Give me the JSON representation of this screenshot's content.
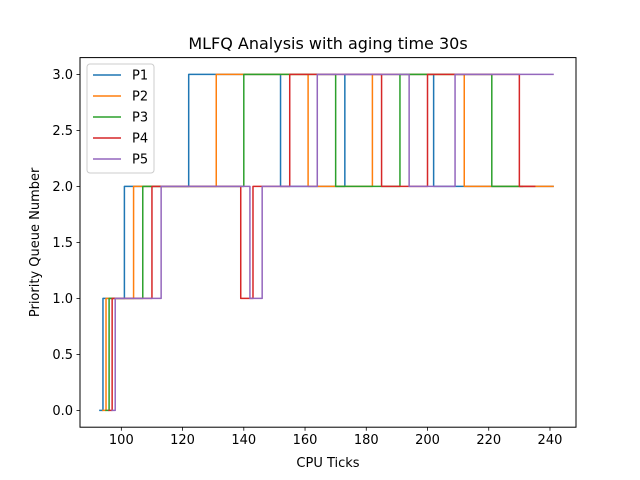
{
  "chart_data": {
    "type": "line",
    "title": "MLFQ Analysis with aging time 30s",
    "xlabel": "CPU Ticks",
    "ylabel": "Priority Queue Number",
    "xlim": [
      86.5,
      248.5
    ],
    "ylim": [
      -0.15,
      3.15
    ],
    "xticks": [
      100,
      120,
      140,
      160,
      180,
      200,
      220,
      240
    ],
    "yticks": [
      0.0,
      0.5,
      1.0,
      1.5,
      2.0,
      2.5,
      3.0
    ],
    "ytick_labels": [
      "0.0",
      "0.5",
      "1.0",
      "1.5",
      "2.0",
      "2.5",
      "3.0"
    ],
    "grid": false,
    "legend_position": "top-left",
    "series": [
      {
        "name": "P1",
        "color": "#1f77b4",
        "x": [
          93,
          94,
          94,
          101,
          101,
          122,
          122,
          152,
          152,
          173,
          173,
          202,
          202,
          241
        ],
        "y": [
          0,
          0,
          1,
          1,
          2,
          2,
          3,
          3,
          2,
          2,
          3,
          3,
          2,
          2
        ]
      },
      {
        "name": "P2",
        "color": "#ff7f0e",
        "x": [
          94,
          95,
          95,
          104,
          104,
          131,
          131,
          161,
          161,
          182,
          182,
          212,
          212,
          241
        ],
        "y": [
          0,
          0,
          1,
          1,
          2,
          2,
          3,
          3,
          2,
          2,
          3,
          3,
          2,
          2
        ]
      },
      {
        "name": "P3",
        "color": "#2ca02c",
        "x": [
          95,
          96,
          96,
          107,
          107,
          140,
          140,
          170,
          170,
          191,
          191,
          221,
          221,
          231
        ],
        "y": [
          0,
          0,
          1,
          1,
          2,
          2,
          3,
          3,
          2,
          2,
          3,
          3,
          2,
          2
        ]
      },
      {
        "name": "P4",
        "color": "#d62728",
        "x": [
          96,
          97,
          97,
          110,
          110,
          139,
          139,
          143,
          143,
          155,
          155,
          185,
          185,
          200,
          200,
          230,
          230,
          235
        ],
        "y": [
          0,
          0,
          1,
          1,
          2,
          2,
          1,
          1,
          2,
          2,
          3,
          3,
          2,
          2,
          3,
          3,
          2,
          2
        ]
      },
      {
        "name": "P5",
        "color": "#9467bd",
        "x": [
          97,
          98,
          98,
          113,
          113,
          142,
          142,
          146,
          146,
          164,
          164,
          194,
          194,
          209,
          209,
          241
        ],
        "y": [
          0,
          0,
          1,
          1,
          2,
          2,
          1,
          1,
          2,
          2,
          3,
          3,
          2,
          2,
          3,
          3
        ]
      }
    ]
  }
}
